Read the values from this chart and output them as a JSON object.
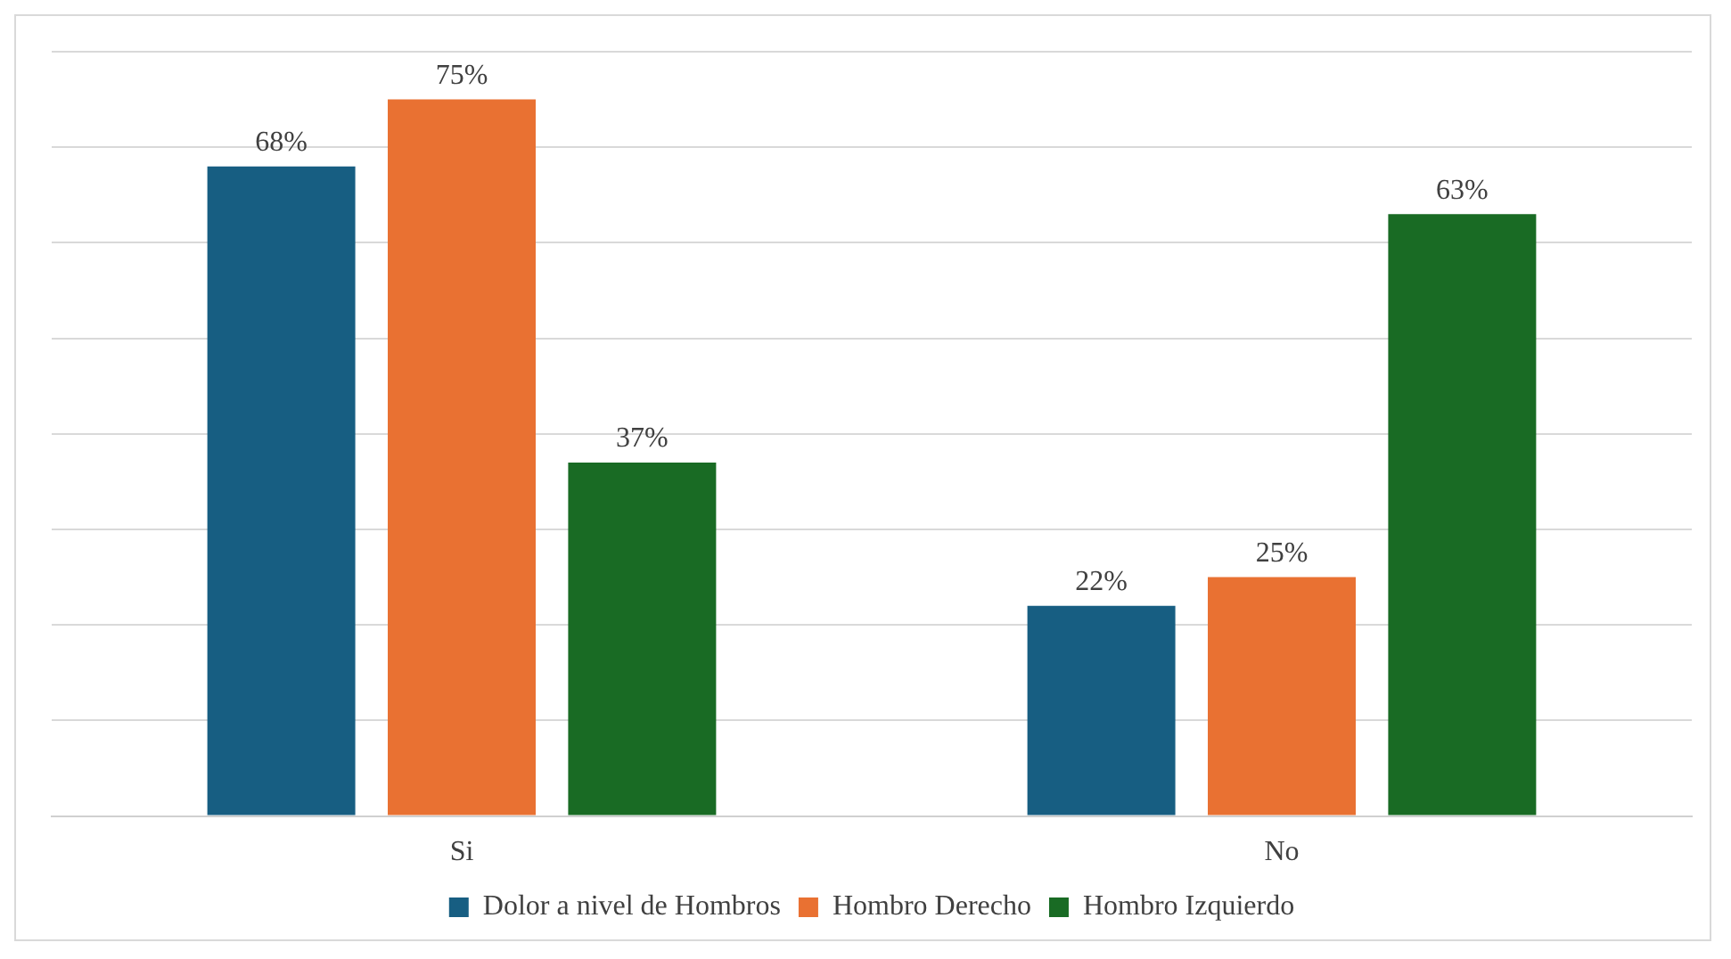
{
  "chart_data": {
    "type": "bar",
    "categories": [
      "Si",
      "No"
    ],
    "series": [
      {
        "name": "Dolor a nivel de Hombros",
        "color": "#175e82",
        "values": [
          68,
          22
        ],
        "value_labels": [
          "68%",
          "22%"
        ]
      },
      {
        "name": "Hombro Derecho",
        "color": "#e97132",
        "values": [
          75,
          25
        ],
        "value_labels": [
          "75%",
          "25%"
        ]
      },
      {
        "name": "Hombro Izquierdo",
        "color": "#196b24",
        "values": [
          37,
          63
        ],
        "value_labels": [
          "37%",
          "63%"
        ]
      }
    ],
    "ylim": [
      0,
      80
    ],
    "yticks": [
      {
        "value": 0,
        "label": null
      },
      {
        "value": 10,
        "label": null
      },
      {
        "value": 20,
        "label": null
      },
      {
        "value": 30,
        "label": null
      },
      {
        "value": 40,
        "label": null
      },
      {
        "value": 50,
        "label": null
      },
      {
        "value": 60,
        "label": null
      },
      {
        "value": 70,
        "label": null
      },
      {
        "value": 80,
        "label": null
      }
    ],
    "grid": "y",
    "legend": "bottom",
    "tick_labels": "x"
  }
}
